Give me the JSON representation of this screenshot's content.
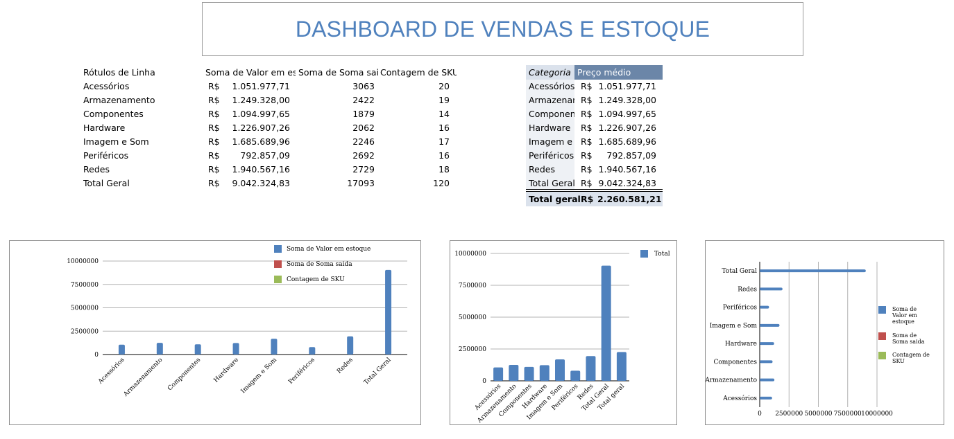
{
  "title": "DASHBOARD DE VENDAS E ESTOQUE",
  "pivot": {
    "headers": [
      "Rótulos de Linha",
      "Soma de Valor em estoque",
      "Soma de Soma saida",
      "Contagem de SKU"
    ],
    "currency": "R$",
    "rows": [
      {
        "label": "Acessórios",
        "valor": "1.051.977,71",
        "saida": "3063",
        "sku": "20"
      },
      {
        "label": "Armazenamento",
        "valor": "1.249.328,00",
        "saida": "2422",
        "sku": "19"
      },
      {
        "label": "Componentes",
        "valor": "1.094.997,65",
        "saida": "1879",
        "sku": "14"
      },
      {
        "label": "Hardware",
        "valor": "1.226.907,26",
        "saida": "2062",
        "sku": "16"
      },
      {
        "label": "Imagem e Som",
        "valor": "1.685.689,96",
        "saida": "2246",
        "sku": "17"
      },
      {
        "label": "Periféricos",
        "valor": "792.857,09",
        "saida": "2692",
        "sku": "16"
      },
      {
        "label": "Redes",
        "valor": "1.940.567,16",
        "saida": "2729",
        "sku": "18"
      },
      {
        "label": "Total Geral",
        "valor": "9.042.324,83",
        "saida": "17093",
        "sku": "120"
      }
    ]
  },
  "category_table": {
    "headers": [
      "Categoria",
      "Preço médio"
    ],
    "currency": "R$",
    "rows": [
      {
        "label": "Acessórios",
        "valor": "1.051.977,71"
      },
      {
        "label": "Armazenamento",
        "valor": "1.249.328,00"
      },
      {
        "label": "Componentes",
        "valor": "1.094.997,65"
      },
      {
        "label": "Hardware",
        "valor": "1.226.907,26"
      },
      {
        "label": "Imagem e Som",
        "valor": "1.685.689,96"
      },
      {
        "label": "Periféricos",
        "valor": "792.857,09"
      },
      {
        "label": "Redes",
        "valor": "1.940.567,16"
      },
      {
        "label": "Total Geral",
        "valor": "9.042.324,83"
      }
    ],
    "total": {
      "label": "Total geral",
      "valor": "2.260.581,21"
    },
    "header_color": "#6b86a8",
    "header_italic_bg": "#dbe2ec",
    "row_bg": "#eef1f5"
  },
  "colors": {
    "series1": "#4f81bd",
    "series2": "#c0504d",
    "series3": "#9bbb59",
    "grid": "#b3b3b3",
    "title": "#4f81bd"
  },
  "chart_data": [
    {
      "type": "bar",
      "categories": [
        "Acessórios",
        "Armazenamento",
        "Componentes",
        "Hardware",
        "Imagem e Som",
        "Periféricos",
        "Redes",
        "Total Geral"
      ],
      "series": [
        {
          "name": "Soma de Valor em estoque",
          "values": [
            1051977.71,
            1249328.0,
            1094997.65,
            1226907.26,
            1685689.96,
            792857.09,
            1940567.16,
            9042324.83
          ]
        },
        {
          "name": "Soma de Soma saida",
          "values": [
            3063,
            2422,
            1879,
            2062,
            2246,
            2692,
            2729,
            17093
          ]
        },
        {
          "name": "Contagem de SKU",
          "values": [
            20,
            19,
            14,
            16,
            17,
            16,
            18,
            120
          ]
        }
      ],
      "yticks": [
        "0",
        "2500000",
        "5000000",
        "7500000",
        "10000000"
      ],
      "ylim": [
        0,
        10000000
      ],
      "legend": "top"
    },
    {
      "type": "bar",
      "categories": [
        "Acessórios",
        "Armazenamento",
        "Componentes",
        "Hardware",
        "Imagem e Som",
        "Periféricos",
        "Redes",
        "Total Geral",
        "Total geral"
      ],
      "series": [
        {
          "name": "Total",
          "values": [
            1051977.71,
            1249328.0,
            1094997.65,
            1226907.26,
            1685689.96,
            792857.09,
            1940567.16,
            9042324.83,
            2260581.21
          ]
        }
      ],
      "yticks": [
        "0",
        "2500000",
        "5000000",
        "7500000",
        "10000000"
      ],
      "ylim": [
        0,
        10000000
      ],
      "legend": "top-right"
    },
    {
      "type": "bar",
      "orientation": "horizontal",
      "categories": [
        "Acessórios",
        "Armazenamento",
        "Componentes",
        "Hardware",
        "Imagem e Som",
        "Periféricos",
        "Redes",
        "Total Geral"
      ],
      "series": [
        {
          "name": "Soma de Valor em estoque",
          "values": [
            1051977.71,
            1249328.0,
            1094997.65,
            1226907.26,
            1685689.96,
            792857.09,
            1940567.16,
            9042324.83
          ]
        },
        {
          "name": "Soma de Soma saida",
          "values": [
            3063,
            2422,
            1879,
            2062,
            2246,
            2692,
            2729,
            17093
          ]
        },
        {
          "name": "Contagem de SKU",
          "values": [
            20,
            19,
            14,
            16,
            17,
            16,
            18,
            120
          ]
        }
      ],
      "xticks": [
        "0",
        "2500000",
        "5000000",
        "7500000",
        "10000000"
      ],
      "xlim": [
        0,
        10000000
      ],
      "legend": "right"
    }
  ]
}
